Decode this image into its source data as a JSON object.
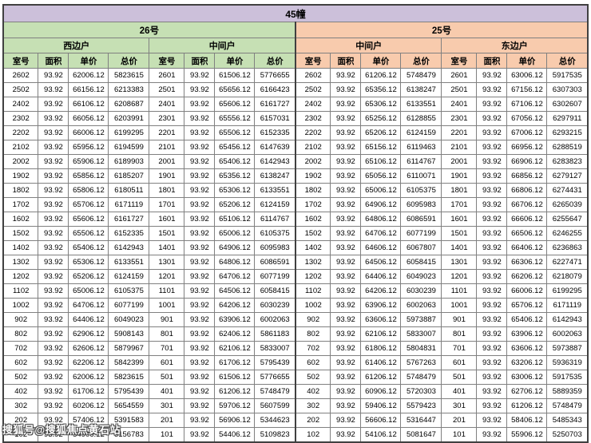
{
  "table": {
    "building_label": "45幢",
    "units": [
      {
        "name": "26号",
        "sections": [
          "西边户",
          "中间户"
        ]
      },
      {
        "name": "25号",
        "sections": [
          "中间户",
          "东边户"
        ]
      }
    ],
    "column_headers": [
      "室号",
      "面积",
      "单价",
      "总价"
    ],
    "rows": [
      [
        "2602",
        "93.92",
        "62006.12",
        "5823615",
        "2601",
        "93.92",
        "61506.12",
        "5776655",
        "2602",
        "93.92",
        "61206.12",
        "5748479",
        "2601",
        "93.92",
        "63006.12",
        "5917535"
      ],
      [
        "2502",
        "93.92",
        "66156.12",
        "6213383",
        "2501",
        "93.92",
        "65656.12",
        "6166423",
        "2502",
        "93.92",
        "65356.12",
        "6138247",
        "2501",
        "93.92",
        "67156.12",
        "6307303"
      ],
      [
        "2402",
        "93.92",
        "66106.12",
        "6208687",
        "2401",
        "93.92",
        "65606.12",
        "6161727",
        "2402",
        "93.92",
        "65306.12",
        "6133551",
        "2401",
        "93.92",
        "67106.12",
        "6302607"
      ],
      [
        "2302",
        "93.92",
        "66056.12",
        "6203991",
        "2301",
        "93.92",
        "65556.12",
        "6157031",
        "2302",
        "93.92",
        "65256.12",
        "6128855",
        "2301",
        "93.92",
        "67056.12",
        "6297911"
      ],
      [
        "2202",
        "93.92",
        "66006.12",
        "6199295",
        "2201",
        "93.92",
        "65506.12",
        "6152335",
        "2202",
        "93.92",
        "65206.12",
        "6124159",
        "2201",
        "93.92",
        "67006.12",
        "6293215"
      ],
      [
        "2102",
        "93.92",
        "65956.12",
        "6194599",
        "2101",
        "93.92",
        "65456.12",
        "6147639",
        "2102",
        "93.92",
        "65156.12",
        "6119463",
        "2101",
        "93.92",
        "66956.12",
        "6288519"
      ],
      [
        "2002",
        "93.92",
        "65906.12",
        "6189903",
        "2001",
        "93.92",
        "65406.12",
        "6142943",
        "2002",
        "93.92",
        "65106.12",
        "6114767",
        "2001",
        "93.92",
        "66906.12",
        "6283823"
      ],
      [
        "1902",
        "93.92",
        "65856.12",
        "6185207",
        "1901",
        "93.92",
        "65356.12",
        "6138247",
        "1902",
        "93.92",
        "65056.12",
        "6110071",
        "1901",
        "93.92",
        "66856.12",
        "6279127"
      ],
      [
        "1802",
        "93.92",
        "65806.12",
        "6180511",
        "1801",
        "93.92",
        "65306.12",
        "6133551",
        "1802",
        "93.92",
        "65006.12",
        "6105375",
        "1801",
        "93.92",
        "66806.12",
        "6274431"
      ],
      [
        "1702",
        "93.92",
        "65706.12",
        "6171119",
        "1701",
        "93.92",
        "65206.12",
        "6124159",
        "1702",
        "93.92",
        "64906.12",
        "6095983",
        "1701",
        "93.92",
        "66706.12",
        "6265039"
      ],
      [
        "1602",
        "93.92",
        "65606.12",
        "6161727",
        "1601",
        "93.92",
        "65106.12",
        "6114767",
        "1602",
        "93.92",
        "64806.12",
        "6086591",
        "1601",
        "93.92",
        "66606.12",
        "6255647"
      ],
      [
        "1502",
        "93.92",
        "65506.12",
        "6152335",
        "1501",
        "93.92",
        "65006.12",
        "6105375",
        "1502",
        "93.92",
        "64706.12",
        "6077199",
        "1501",
        "93.92",
        "66506.12",
        "6246255"
      ],
      [
        "1402",
        "93.92",
        "65406.12",
        "6142943",
        "1401",
        "93.92",
        "64906.12",
        "6095983",
        "1402",
        "93.92",
        "64606.12",
        "6067807",
        "1401",
        "93.92",
        "66406.12",
        "6236863"
      ],
      [
        "1302",
        "93.92",
        "65306.12",
        "6133551",
        "1301",
        "93.92",
        "64806.12",
        "6086591",
        "1302",
        "93.92",
        "64506.12",
        "6058415",
        "1301",
        "93.92",
        "66306.12",
        "6227471"
      ],
      [
        "1202",
        "93.92",
        "65206.12",
        "6124159",
        "1201",
        "93.92",
        "64706.12",
        "6077199",
        "1202",
        "93.92",
        "64406.12",
        "6049023",
        "1201",
        "93.92",
        "66206.12",
        "6218079"
      ],
      [
        "1102",
        "93.92",
        "65006.12",
        "6105375",
        "1101",
        "93.92",
        "64506.12",
        "6058415",
        "1102",
        "93.92",
        "64206.12",
        "6030239",
        "1101",
        "93.92",
        "66006.12",
        "6199295"
      ],
      [
        "1002",
        "93.92",
        "64706.12",
        "6077199",
        "1001",
        "93.92",
        "64206.12",
        "6030239",
        "1002",
        "93.92",
        "63906.12",
        "6002063",
        "1001",
        "93.92",
        "65706.12",
        "6171119"
      ],
      [
        "902",
        "93.92",
        "64406.12",
        "6049023",
        "901",
        "93.92",
        "63906.12",
        "6002063",
        "902",
        "93.92",
        "63606.12",
        "5973887",
        "901",
        "93.92",
        "65406.12",
        "6142943"
      ],
      [
        "802",
        "93.92",
        "62906.12",
        "5908143",
        "801",
        "93.92",
        "62406.12",
        "5861183",
        "802",
        "93.92",
        "62106.12",
        "5833007",
        "801",
        "93.92",
        "63906.12",
        "6002063"
      ],
      [
        "702",
        "93.92",
        "62606.12",
        "5879967",
        "701",
        "93.92",
        "62106.12",
        "5833007",
        "702",
        "93.92",
        "61806.12",
        "5804831",
        "701",
        "93.92",
        "63606.12",
        "5973887"
      ],
      [
        "602",
        "93.92",
        "62206.12",
        "5842399",
        "601",
        "93.92",
        "61706.12",
        "5795439",
        "602",
        "93.92",
        "61406.12",
        "5767263",
        "601",
        "93.92",
        "63206.12",
        "5936319"
      ],
      [
        "502",
        "93.92",
        "62006.12",
        "5823615",
        "501",
        "93.92",
        "61506.12",
        "5776655",
        "502",
        "93.92",
        "61206.12",
        "5748479",
        "501",
        "93.92",
        "63006.12",
        "5917535"
      ],
      [
        "402",
        "93.92",
        "61706.12",
        "5795439",
        "401",
        "93.92",
        "61206.12",
        "5748479",
        "402",
        "93.92",
        "60906.12",
        "5720303",
        "401",
        "93.92",
        "62706.12",
        "5889359"
      ],
      [
        "302",
        "93.92",
        "60206.12",
        "5654559",
        "301",
        "93.92",
        "59706.12",
        "5607599",
        "302",
        "93.92",
        "59406.12",
        "5579423",
        "301",
        "93.92",
        "61206.12",
        "5748479"
      ],
      [
        "202",
        "93.92",
        "57406.12",
        "5391583",
        "201",
        "93.92",
        "56906.12",
        "5344623",
        "202",
        "93.92",
        "56606.12",
        "5316447",
        "201",
        "93.92",
        "58406.12",
        "5485343"
      ],
      [
        "102",
        "93.92",
        "54906.12",
        "5156783",
        "101",
        "93.92",
        "54406.12",
        "5109823",
        "102",
        "93.92",
        "54106.12",
        "5081647",
        "101",
        "93.92",
        "55906.12",
        "5250703"
      ]
    ]
  },
  "watermark": {
    "text": "搜狐号@搜狐焦点黄石站"
  },
  "colors": {
    "building_header_bg": "#ccc0da",
    "unit26_bg": "#c6e0b4",
    "unit25_bg": "#f8cbad",
    "border": "#808080"
  }
}
